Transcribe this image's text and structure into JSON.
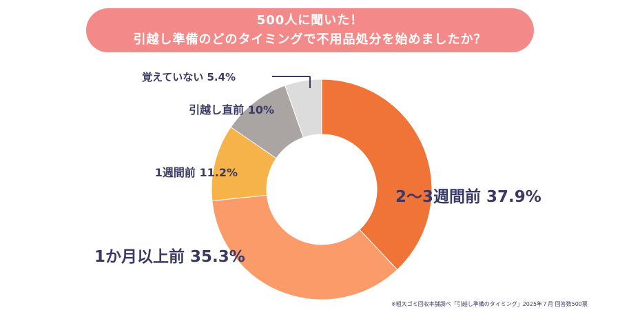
{
  "header": {
    "line1": "500人に聞いた！",
    "line2": "引越し準備のどのタイミングで不用品処分を始めましたか？"
  },
  "footnote": "※粗大ゴミ回収本舗調べ「引越し準備のタイミング」2025年７月 回答数500票",
  "chart_data": {
    "type": "pie",
    "title": "500人に聞いた！ 引越し準備のどのタイミングで不用品処分を始めましたか？",
    "donut": true,
    "slices": [
      {
        "label": "2〜3週間前",
        "value": 37.9,
        "display": "2〜3週間前 37.9%",
        "color": "#f07338"
      },
      {
        "label": "1か月以上前",
        "value": 35.3,
        "display": "1か月以上前 35.3%",
        "color": "#fb9b69"
      },
      {
        "label": "1週間前",
        "value": 11.2,
        "display": "1週間前 11.2%",
        "color": "#f6b34a"
      },
      {
        "label": "引越し直前",
        "value": 10,
        "display": "引越し直前 10%",
        "color": "#aaa5a2"
      },
      {
        "label": "覚えていない",
        "value": 5.4,
        "display": "覚えていない 5.4%",
        "color": "#dcdcdc"
      }
    ]
  }
}
